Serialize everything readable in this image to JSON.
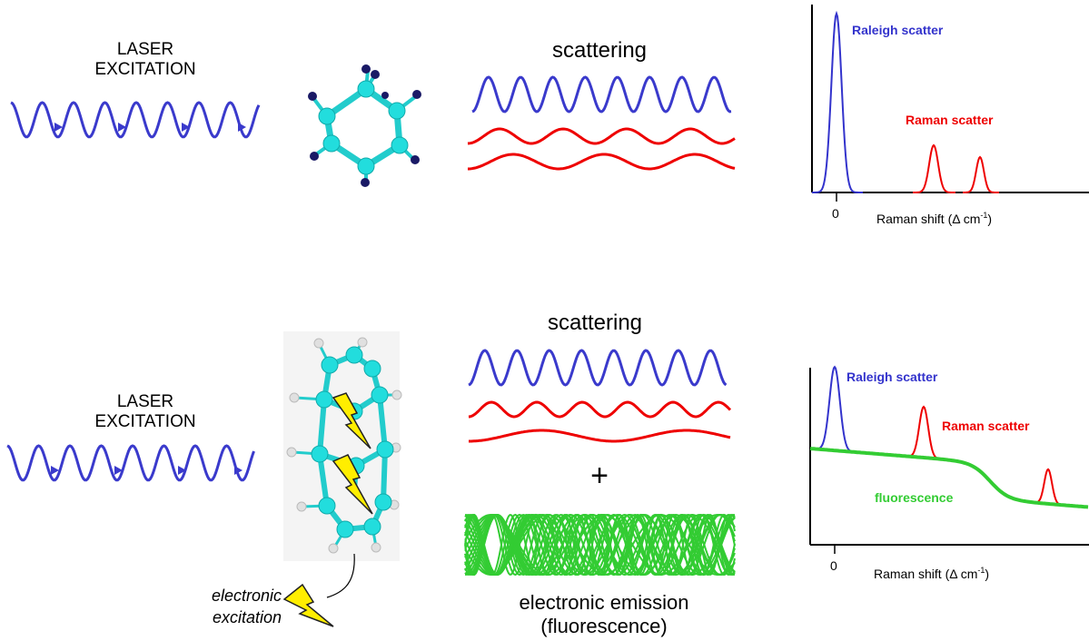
{
  "top": {
    "laser_line1": "LASER",
    "laser_line2": "EXCITATION",
    "scattering_label": "scattering",
    "chart": {
      "rayleigh_label": "Raleigh scatter",
      "raman_label": "Raman scatter",
      "zero_tick": "0",
      "xlabel_main": "Raman shift (",
      "xlabel_delta": "Δ",
      "xlabel_unit": " cm",
      "xlabel_sup": "-1",
      "xlabel_close": ")"
    }
  },
  "bottom": {
    "laser_line1": "LASER",
    "laser_line2": "EXCITATION",
    "scattering_label": "scattering",
    "plus": "+",
    "emission_line1": "electronic emission",
    "emission_line2": "(fluorescence)",
    "excitation_line1": "electronic",
    "excitation_line2": "excitation",
    "chart": {
      "rayleigh_label": "Raleigh scatter",
      "raman_label": "Raman scatter",
      "fluorescence_label": "fluorescence",
      "zero_tick": "0",
      "xlabel_main": "Raman shift (",
      "xlabel_delta": "Δ",
      "xlabel_unit": " cm",
      "xlabel_sup": "-1",
      "xlabel_close": ")"
    }
  },
  "colors": {
    "laser": "#3a3acc",
    "rayleigh": "#3333cc",
    "raman": "#ee0000",
    "fluorescence": "#33cc33",
    "atom": "#22dddd",
    "hydrogen_top": "#1a1a66",
    "hydrogen_bottom": "#dddddd",
    "bolt": "#ffee00"
  }
}
